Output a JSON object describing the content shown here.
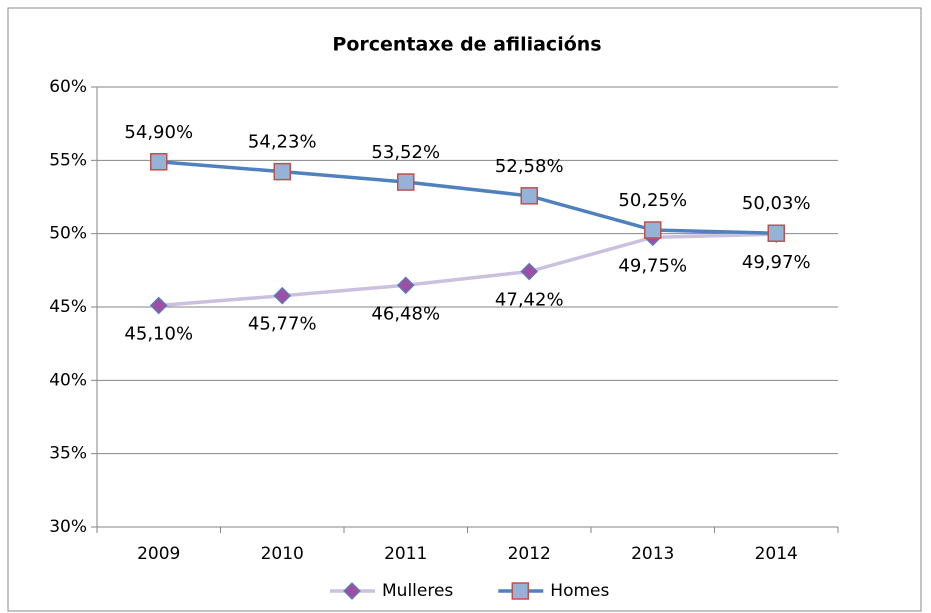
{
  "chart_data": {
    "type": "line",
    "title": "Porcentaxe de afiliacións",
    "categories": [
      "2009",
      "2010",
      "2011",
      "2012",
      "2013",
      "2014"
    ],
    "series": [
      {
        "name": "Mulleres",
        "color": "#cbc0dd",
        "marker": "diamond",
        "marker_color": "#9e4fa3",
        "marker_edge": "#4f81bd",
        "values": [
          45.1,
          45.77,
          46.48,
          47.42,
          49.75,
          49.97
        ],
        "value_labels": [
          "45,10%",
          "45,77%",
          "46,48%",
          "47,42%",
          "49,75%",
          "49,97%"
        ]
      },
      {
        "name": "Homes",
        "color": "#4f81bd",
        "marker": "square",
        "marker_color": "#95b3d7",
        "marker_edge": "#c0504d",
        "values": [
          54.9,
          54.23,
          53.52,
          52.58,
          50.25,
          50.03
        ],
        "value_labels": [
          "54,90%",
          "54,23%",
          "53,52%",
          "52,58%",
          "50,25%",
          "50,03%"
        ]
      }
    ],
    "ylim": [
      30,
      60
    ],
    "yticks": [
      {
        "value": 30,
        "label": "30%"
      },
      {
        "value": 35,
        "label": "35%"
      },
      {
        "value": 40,
        "label": "40%"
      },
      {
        "value": 45,
        "label": "45%"
      },
      {
        "value": 50,
        "label": "50%"
      },
      {
        "value": 55,
        "label": "55%"
      },
      {
        "value": 60,
        "label": "60%"
      }
    ],
    "grid": true,
    "legend": "bottom"
  }
}
